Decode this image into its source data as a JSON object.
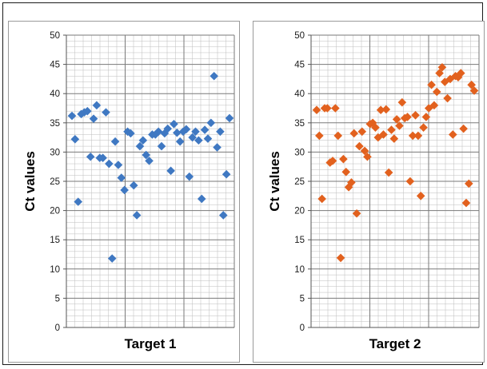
{
  "chart_data": [
    {
      "type": "scatter",
      "xlabel": "Target 1",
      "ylabel": "Ct values",
      "ylim": [
        0,
        50
      ],
      "yticks": [
        "0",
        "5",
        "10",
        "15",
        "20",
        "25",
        "30",
        "35",
        "40",
        "45",
        "50"
      ],
      "grid": true,
      "marker": "diamond",
      "color": "#3F78C2",
      "series": [
        {
          "values": [
            36.2,
            32.2,
            21.5,
            36.5,
            36.8,
            37.0,
            29.2,
            35.7,
            38.0,
            29.0,
            29.0,
            36.8,
            28.0,
            11.8,
            31.8,
            27.8,
            25.6,
            23.5,
            33.5,
            33.2,
            24.3,
            19.2,
            31.0,
            32.0,
            29.5,
            28.5,
            33.0,
            33.0,
            33.5,
            31.0,
            33.2,
            34.0,
            26.8,
            34.8,
            33.3,
            31.8,
            33.5,
            33.9,
            25.8,
            32.5,
            33.5,
            32.0,
            22.0,
            33.8,
            32.3,
            35.0,
            43.0,
            30.8,
            33.5,
            19.2,
            26.2,
            35.8
          ]
        }
      ]
    },
    {
      "type": "scatter",
      "xlabel": "Target 2",
      "ylabel": "Ct values",
      "ylim": [
        0,
        50
      ],
      "yticks": [
        "0",
        "5",
        "10",
        "15",
        "20",
        "25",
        "30",
        "35",
        "40",
        "45",
        "50"
      ],
      "grid": true,
      "marker": "diamond",
      "color": "#E2611E",
      "series": [
        {
          "values": [
            37.2,
            32.8,
            22.0,
            37.5,
            37.5,
            28.2,
            28.5,
            37.5,
            32.8,
            11.9,
            28.8,
            26.6,
            24.0,
            24.8,
            33.2,
            19.5,
            31.0,
            33.5,
            30.2,
            29.2,
            34.8,
            35.0,
            34.2,
            32.5,
            37.2,
            33.0,
            37.3,
            26.5,
            33.8,
            32.3,
            35.6,
            34.5,
            38.5,
            35.8,
            36.0,
            25.0,
            32.8,
            36.3,
            32.8,
            22.5,
            34.2,
            36.0,
            37.5,
            41.5,
            38.0,
            40.3,
            43.5,
            44.5,
            42.0,
            39.2,
            42.5,
            33.0,
            43.0,
            42.8,
            43.5,
            34.0,
            21.3,
            24.6,
            41.5,
            40.5
          ]
        }
      ]
    }
  ]
}
